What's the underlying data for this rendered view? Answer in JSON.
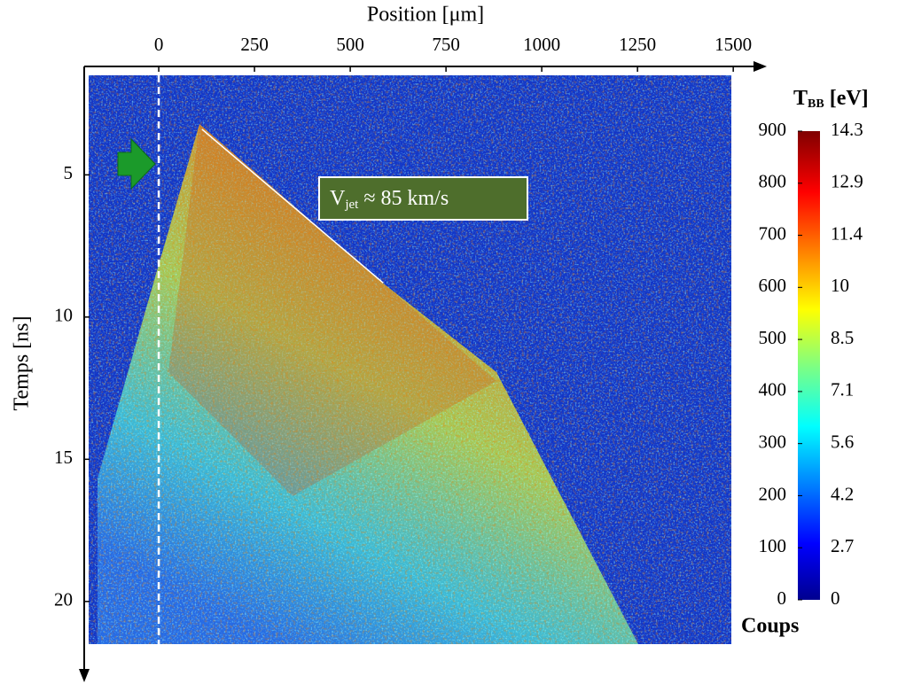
{
  "chart_data": {
    "type": "heatmap",
    "xlabel": "Position [μm]",
    "ylabel": "Temps [ns]",
    "xlim": [
      -183,
      1495
    ],
    "xticks": [
      0,
      250,
      500,
      750,
      1000,
      1250,
      1500
    ],
    "ylim": [
      1.5,
      21.5
    ],
    "yticks": [
      5,
      10,
      15,
      20
    ],
    "y_inverted": true,
    "fit_line": {
      "x": [
        113,
        586
      ],
      "y": [
        3.4,
        8.8
      ]
    },
    "annotation": {
      "main": "V",
      "sub": "jet",
      "rest": "≈ 85 km/s"
    },
    "colorbar": {
      "title_main": "T",
      "title_sub": "BB",
      "title_rest": "[eV]",
      "counts_label": "Coups",
      "clim": [
        0,
        900
      ],
      "scale": [
        {
          "coups": 0,
          "t_bb": 0
        },
        {
          "coups": 100,
          "t_bb": 2.7
        },
        {
          "coups": 200,
          "t_bb": 4.2
        },
        {
          "coups": 300,
          "t_bb": 5.6
        },
        {
          "coups": 400,
          "t_bb": 7.1
        },
        {
          "coups": 500,
          "t_bb": 8.5
        },
        {
          "coups": 600,
          "t_bb": 10
        },
        {
          "coups": 700,
          "t_bb": 11.4
        },
        {
          "coups": 800,
          "t_bb": 12.9
        },
        {
          "coups": 900,
          "t_bb": 14.3
        }
      ]
    }
  }
}
